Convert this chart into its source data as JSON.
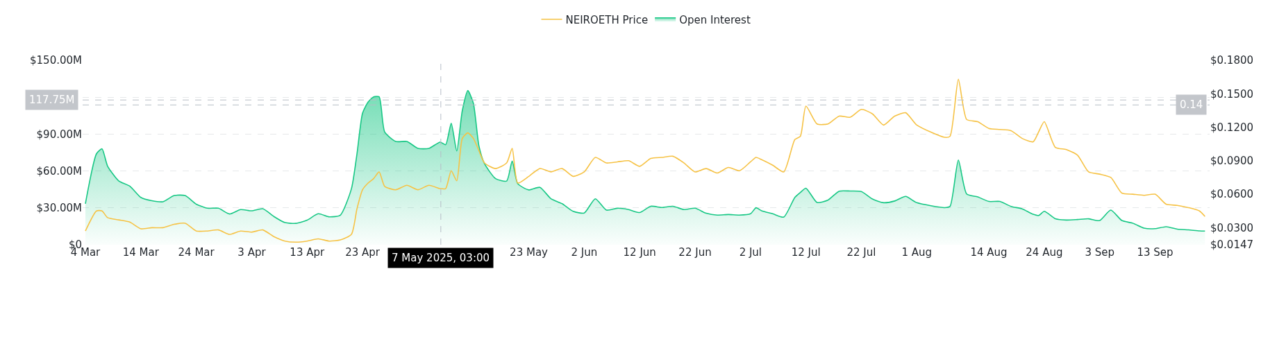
{
  "chart_data": {
    "type": "area",
    "x": [
      "2025-03-04",
      "2025-03-06",
      "2025-03-07",
      "2025-03-08",
      "2025-03-10",
      "2025-03-12",
      "2025-03-14",
      "2025-03-16",
      "2025-03-18",
      "2025-03-20",
      "2025-03-22",
      "2025-03-24",
      "2025-03-26",
      "2025-03-28",
      "2025-03-30",
      "2025-04-01",
      "2025-04-03",
      "2025-04-05",
      "2025-04-07",
      "2025-04-09",
      "2025-04-11",
      "2025-04-13",
      "2025-04-15",
      "2025-04-17",
      "2025-04-19",
      "2025-04-21",
      "2025-04-22",
      "2025-04-23",
      "2025-04-24",
      "2025-04-25",
      "2025-04-26",
      "2025-04-27",
      "2025-04-29",
      "2025-05-01",
      "2025-05-03",
      "2025-05-05",
      "2025-05-07",
      "2025-05-08",
      "2025-05-09",
      "2025-05-10",
      "2025-05-11",
      "2025-05-12",
      "2025-05-13",
      "2025-05-14",
      "2025-05-15",
      "2025-05-17",
      "2025-05-19",
      "2025-05-20",
      "2025-05-21",
      "2025-05-23",
      "2025-05-25",
      "2025-05-27",
      "2025-05-29",
      "2025-05-31",
      "2025-06-02",
      "2025-06-04",
      "2025-06-06",
      "2025-06-08",
      "2025-06-10",
      "2025-06-12",
      "2025-06-14",
      "2025-06-16",
      "2025-06-18",
      "2025-06-20",
      "2025-06-22",
      "2025-06-24",
      "2025-06-26",
      "2025-06-28",
      "2025-06-30",
      "2025-07-02",
      "2025-07-03",
      "2025-07-04",
      "2025-07-06",
      "2025-07-08",
      "2025-07-10",
      "2025-07-11",
      "2025-07-12",
      "2025-07-14",
      "2025-07-16",
      "2025-07-18",
      "2025-07-20",
      "2025-07-22",
      "2025-07-24",
      "2025-07-26",
      "2025-07-28",
      "2025-07-30",
      "2025-08-01",
      "2025-08-06",
      "2025-08-07",
      "2025-08-08T12:00",
      "2025-08-10",
      "2025-08-12",
      "2025-08-14",
      "2025-08-16",
      "2025-08-18",
      "2025-08-20",
      "2025-08-22",
      "2025-08-23",
      "2025-08-24",
      "2025-08-26",
      "2025-08-28",
      "2025-08-30",
      "2025-09-01",
      "2025-09-03",
      "2025-09-05",
      "2025-09-07",
      "2025-09-09",
      "2025-09-11",
      "2025-09-13",
      "2025-09-15",
      "2025-09-17",
      "2025-09-19",
      "2025-09-21",
      "2025-09-22"
    ],
    "series": [
      {
        "name": "NEIROETH Price",
        "type": "line",
        "axis": "y2",
        "color": "#f6c244",
        "values": [
          0.027,
          0.045,
          0.045,
          0.039,
          0.037,
          0.035,
          0.029,
          0.03,
          0.03,
          0.033,
          0.034,
          0.027,
          0.027,
          0.028,
          0.024,
          0.027,
          0.026,
          0.028,
          0.022,
          0.018,
          0.017,
          0.018,
          0.02,
          0.018,
          0.019,
          0.024,
          0.047,
          0.064,
          0.07,
          0.074,
          0.08,
          0.067,
          0.064,
          0.068,
          0.064,
          0.068,
          0.065,
          0.065,
          0.081,
          0.072,
          0.11,
          0.115,
          0.11,
          0.099,
          0.088,
          0.083,
          0.088,
          0.101,
          0.07,
          0.076,
          0.083,
          0.08,
          0.083,
          0.076,
          0.08,
          0.093,
          0.088,
          0.089,
          0.09,
          0.085,
          0.092,
          0.093,
          0.094,
          0.088,
          0.08,
          0.083,
          0.079,
          0.084,
          0.081,
          0.089,
          0.093,
          0.091,
          0.086,
          0.08,
          0.109,
          0.112,
          0.139,
          0.123,
          0.123,
          0.13,
          0.129,
          0.136,
          0.132,
          0.122,
          0.13,
          0.133,
          0.122,
          0.111,
          0.112,
          0.163,
          0.127,
          0.125,
          0.119,
          0.118,
          0.117,
          0.11,
          0.107,
          0.116,
          0.125,
          0.102,
          0.1,
          0.095,
          0.08,
          0.078,
          0.075,
          0.061,
          0.06,
          0.059,
          0.06,
          0.051,
          0.05,
          0.048,
          0.045,
          0.04
        ]
      },
      {
        "name": "Open Interest",
        "color": "#16c784",
        "values": [
          33.4,
          74,
          78,
          64,
          52,
          47.7,
          38.5,
          35.8,
          35,
          40,
          40,
          33,
          29.7,
          29.7,
          25,
          28.6,
          27.6,
          29.3,
          23,
          18,
          17.4,
          20,
          25.2,
          22.7,
          24.1,
          45.6,
          74,
          107,
          116,
          120.3,
          120.3,
          91.7,
          84,
          84,
          78.4,
          78.4,
          83.5,
          81.4,
          98.8,
          76.3,
          109,
          125.4,
          115,
          80.4,
          66,
          53.8,
          51.8,
          68,
          49.7,
          44.6,
          46.7,
          37.4,
          33.4,
          27.2,
          25.8,
          37.4,
          28.2,
          29.7,
          28.6,
          26.2,
          31.3,
          30.3,
          31.3,
          28.6,
          29.7,
          25.6,
          24.1,
          24.6,
          24.1,
          25.2,
          30.1,
          27.6,
          25.2,
          22.5,
          38.5,
          42.6,
          46,
          34.4,
          36.4,
          43.6,
          43.7,
          43.3,
          37.2,
          34.2,
          35.6,
          39.3,
          34.2,
          30.2,
          31.2,
          68.9,
          41.3,
          38.9,
          35.2,
          35.2,
          31.2,
          29.2,
          24.8,
          23.8,
          27.2,
          21.1,
          20.1,
          20.5,
          21.1,
          19.7,
          28.2,
          19.7,
          17.5,
          13.5,
          13.1,
          14.7,
          12.7,
          12.1,
          11.3,
          11.1
        ]
      }
    ],
    "xlim": [
      "2025-03-03T12:00",
      "2025-09-22T20:00"
    ],
    "xticks": [
      {
        "value": "2025-03-04",
        "label": "4 Mar"
      },
      {
        "value": "2025-03-14",
        "label": "14 Mar"
      },
      {
        "value": "2025-03-24",
        "label": "24 Mar"
      },
      {
        "value": "2025-04-03",
        "label": "3 Apr"
      },
      {
        "value": "2025-04-13",
        "label": "13 Apr"
      },
      {
        "value": "2025-04-23",
        "label": "23 Apr"
      },
      {
        "value": "2025-05-23",
        "label": "23 May"
      },
      {
        "value": "2025-06-02",
        "label": "2 Jun"
      },
      {
        "value": "2025-06-12",
        "label": "12 Jun"
      },
      {
        "value": "2025-06-22",
        "label": "22 Jun"
      },
      {
        "value": "2025-07-02",
        "label": "2 Jul"
      },
      {
        "value": "2025-07-12",
        "label": "12 Jul"
      },
      {
        "value": "2025-07-22",
        "label": "22 Jul"
      },
      {
        "value": "2025-08-01",
        "label": "1 Aug"
      },
      {
        "value": "2025-08-14",
        "label": "14 Aug"
      },
      {
        "value": "2025-08-24",
        "label": "24 Aug"
      },
      {
        "value": "2025-09-03",
        "label": "3 Sep"
      },
      {
        "value": "2025-09-13",
        "label": "13 Sep"
      }
    ],
    "ylim": [
      0,
      150
    ],
    "yticks": [
      {
        "value": 0,
        "label": "$0"
      },
      {
        "value": 30,
        "label": "$30.00M"
      },
      {
        "value": 60,
        "label": "$60.00M"
      },
      {
        "value": 90,
        "label": "$90.00M"
      },
      {
        "value": 120,
        "label": null
      },
      {
        "value": 150,
        "label": "$150.00M"
      }
    ],
    "y2lim": [
      0.0147,
      0.18
    ],
    "y2ticks": [
      {
        "value": 0.0147,
        "label": "$0.0147"
      },
      {
        "value": 0.03,
        "label": "$0.0300"
      },
      {
        "value": 0.06,
        "label": "$0.0600"
      },
      {
        "value": 0.09,
        "label": "$0.0900"
      },
      {
        "value": 0.12,
        "label": "$0.1200"
      },
      {
        "value": 0.15,
        "label": "$0.1500"
      },
      {
        "value": 0.18,
        "label": "$0.1800"
      }
    ],
    "ref_lines": [
      {
        "axis": "x",
        "value": "2025-05-07T03:00",
        "label": "7 May 2025, 03:00"
      },
      {
        "axis": "y",
        "value": 117.75,
        "label": "117.75M"
      },
      {
        "axis": "y2",
        "value": 0.14,
        "label": "0.14"
      }
    ],
    "grid": "y",
    "legend": "top",
    "marker": "none"
  }
}
